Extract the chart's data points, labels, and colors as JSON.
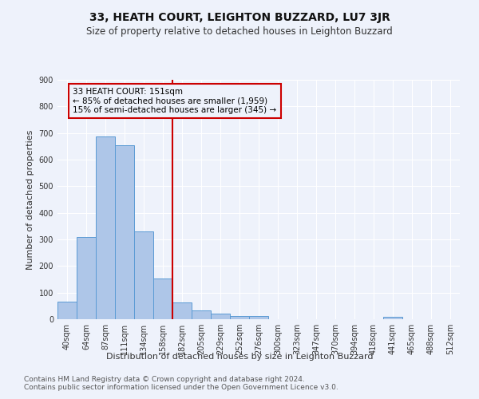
{
  "title": "33, HEATH COURT, LEIGHTON BUZZARD, LU7 3JR",
  "subtitle": "Size of property relative to detached houses in Leighton Buzzard",
  "xlabel": "Distribution of detached houses by size in Leighton Buzzard",
  "ylabel": "Number of detached properties",
  "footer_line1": "Contains HM Land Registry data © Crown copyright and database right 2024.",
  "footer_line2": "Contains public sector information licensed under the Open Government Licence v3.0.",
  "bar_labels": [
    "40sqm",
    "64sqm",
    "87sqm",
    "111sqm",
    "134sqm",
    "158sqm",
    "182sqm",
    "205sqm",
    "229sqm",
    "252sqm",
    "276sqm",
    "300sqm",
    "323sqm",
    "347sqm",
    "370sqm",
    "394sqm",
    "418sqm",
    "441sqm",
    "465sqm",
    "488sqm",
    "512sqm"
  ],
  "bar_values": [
    65,
    308,
    688,
    653,
    330,
    152,
    63,
    32,
    21,
    13,
    12,
    0,
    0,
    0,
    0,
    0,
    0,
    10,
    0,
    0,
    0
  ],
  "bar_color": "#aec6e8",
  "bar_edge_color": "#5b9bd5",
  "vline_x": 5.5,
  "vline_color": "#cc0000",
  "annotation_text": "33 HEATH COURT: 151sqm\n← 85% of detached houses are smaller (1,959)\n15% of semi-detached houses are larger (345) →",
  "annotation_box_color": "#cc0000",
  "annotation_text_color": "#000000",
  "ylim": [
    0,
    900
  ],
  "yticks": [
    0,
    100,
    200,
    300,
    400,
    500,
    600,
    700,
    800,
    900
  ],
  "background_color": "#eef2fb",
  "grid_color": "#ffffff",
  "title_fontsize": 10,
  "subtitle_fontsize": 8.5,
  "axis_label_fontsize": 8,
  "tick_fontsize": 7,
  "annotation_fontsize": 7.5,
  "footer_fontsize": 6.5
}
